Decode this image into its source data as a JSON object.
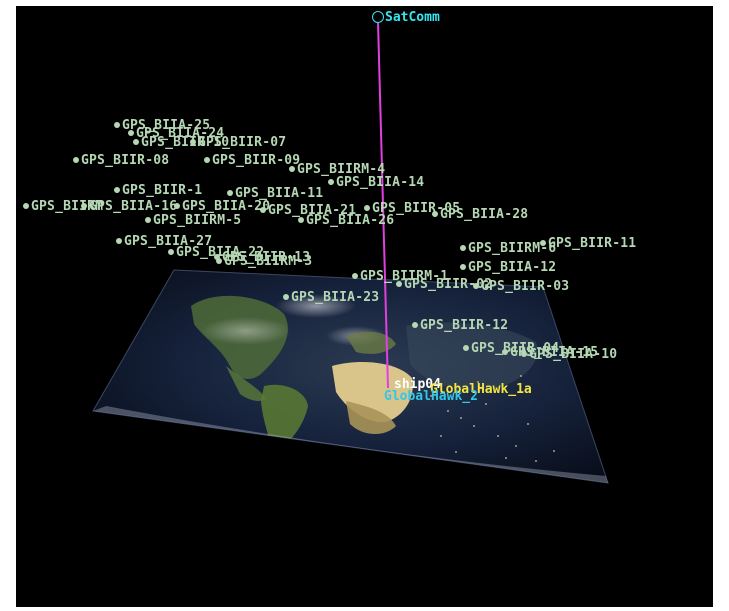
{
  "colors": {
    "background": "#000000",
    "gps_label": "#b5d7b4",
    "satcomm": "#33e6f0",
    "link": "#e040e0",
    "ship": "#ffffff",
    "globalhawk_a": "#f3e640",
    "globalhawk_b": "#33c6e6"
  },
  "satcomm": {
    "label": "SatComm",
    "icon": "satellite-ring-icon"
  },
  "ground_units": {
    "ship": "ship04",
    "globalhawk_1a": "GlobalHawk_1a",
    "globalhawk_2": "GlobalHawk_2"
  },
  "satellites": [
    {
      "label": "GPS_BIIA-25"
    },
    {
      "label": "GPS_BIIA-24"
    },
    {
      "label": "GPS_BIIR-10"
    },
    {
      "label": "GPS_BIIR-07"
    },
    {
      "label": "GPS_BIIR-08"
    },
    {
      "label": "GPS_BIIR-09"
    },
    {
      "label": "GPS_BIIRM-4"
    },
    {
      "label": "GPS_BIIA-14"
    },
    {
      "label": "GPS_BIIR-1"
    },
    {
      "label": "GPS_BIIA-11"
    },
    {
      "label": "GPS_BIIRM"
    },
    {
      "label": "GPS_BIIA-16"
    },
    {
      "label": "GPS_BIIA-20"
    },
    {
      "label": "GPS_BIIA-21"
    },
    {
      "label": "GPS_BIIRM-5"
    },
    {
      "label": "GPS_BIIR-05"
    },
    {
      "label": "GPS_BIIA-26"
    },
    {
      "label": "GPS_BIIA-28"
    },
    {
      "label": "GPS_BIIA-27"
    },
    {
      "label": "GPS_BIIA-22"
    },
    {
      "label": "GPS_BIIR-13"
    },
    {
      "label": "GPS_BIIRM-3"
    },
    {
      "label": "GPS_BIIR-11"
    },
    {
      "label": "GPS_BIIRM-6"
    },
    {
      "label": "GPS_BIIA-12"
    },
    {
      "label": "GPS_BIIRM-1"
    },
    {
      "label": "GPS_BIIR-02"
    },
    {
      "label": "GPS_BIIR-03"
    },
    {
      "label": "GPS_BIIA-23"
    },
    {
      "label": "GPS_BIIR-12"
    },
    {
      "label": "GPS_BIIR-04"
    },
    {
      "label": "GPS_BIIA-15"
    },
    {
      "label": "GPS_BIIA-10"
    }
  ]
}
